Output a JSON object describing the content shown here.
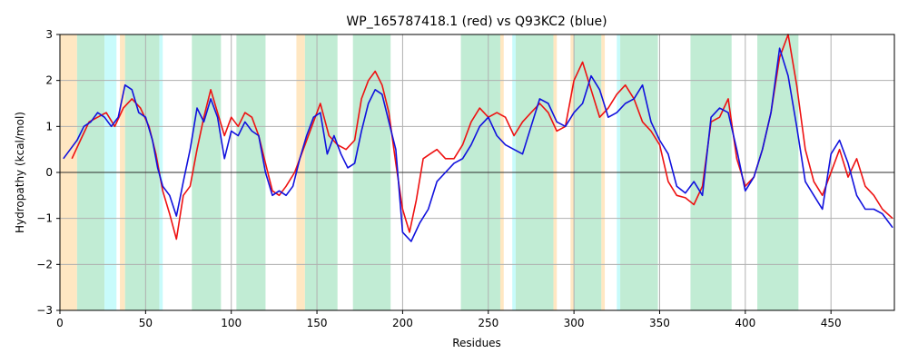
{
  "chart_data": {
    "type": "line",
    "title": "WP_165787418.1 (red) vs Q93KC2 (blue)",
    "xlabel": "Residues",
    "ylabel": "Hydropathy (kcal/mol)",
    "xlim": [
      0,
      487
    ],
    "ylim": [
      -3,
      3
    ],
    "xticks": [
      0,
      50,
      100,
      150,
      200,
      250,
      300,
      350,
      400,
      450
    ],
    "yticks": [
      -3,
      -2,
      -1,
      0,
      1,
      2,
      3
    ],
    "grid": true,
    "zero_line": true,
    "colors": {
      "series_red": "#ee1111",
      "series_blue": "#1111dd",
      "band_orange": "#ffe7c2",
      "band_cyan": "#c8fbfb",
      "band_green": "#c1ecd4",
      "grid": "#b0b0b0"
    },
    "bands": [
      {
        "start": 0,
        "end": 10,
        "kind": "orange"
      },
      {
        "start": 10,
        "end": 26,
        "kind": "green"
      },
      {
        "start": 26,
        "end": 33,
        "kind": "cyan"
      },
      {
        "start": 35,
        "end": 38,
        "kind": "orange"
      },
      {
        "start": 38,
        "end": 58,
        "kind": "green"
      },
      {
        "start": 58,
        "end": 60,
        "kind": "cyan"
      },
      {
        "start": 77,
        "end": 94,
        "kind": "green"
      },
      {
        "start": 103,
        "end": 120,
        "kind": "green"
      },
      {
        "start": 138,
        "end": 143,
        "kind": "orange"
      },
      {
        "start": 143,
        "end": 162,
        "kind": "green"
      },
      {
        "start": 171,
        "end": 193,
        "kind": "green"
      },
      {
        "start": 234,
        "end": 257,
        "kind": "green"
      },
      {
        "start": 257,
        "end": 259,
        "kind": "orange"
      },
      {
        "start": 264,
        "end": 266,
        "kind": "cyan"
      },
      {
        "start": 266,
        "end": 288,
        "kind": "green"
      },
      {
        "start": 288,
        "end": 290,
        "kind": "orange"
      },
      {
        "start": 298,
        "end": 300,
        "kind": "orange"
      },
      {
        "start": 300,
        "end": 316,
        "kind": "green"
      },
      {
        "start": 316,
        "end": 318,
        "kind": "orange"
      },
      {
        "start": 325,
        "end": 327,
        "kind": "cyan"
      },
      {
        "start": 327,
        "end": 349,
        "kind": "green"
      },
      {
        "start": 368,
        "end": 392,
        "kind": "green"
      },
      {
        "start": 407,
        "end": 431,
        "kind": "green"
      }
    ],
    "series": [
      {
        "color": "red",
        "x": [
          7,
          12,
          17,
          22,
          27,
          32,
          37,
          42,
          47,
          52,
          56,
          60,
          64,
          68,
          72,
          76,
          80,
          84,
          88,
          92,
          96,
          100,
          104,
          108,
          112,
          116,
          120,
          124,
          128,
          132,
          137,
          142,
          147,
          152,
          157,
          162,
          167,
          172,
          176,
          180,
          184,
          188,
          192,
          196,
          200,
          204,
          208,
          212,
          216,
          220,
          225,
          230,
          235,
          240,
          245,
          250,
          255,
          260,
          265,
          270,
          275,
          280,
          285,
          290,
          295,
          300,
          305,
          310,
          315,
          320,
          325,
          330,
          335,
          340,
          345,
          350,
          355,
          360,
          365,
          370,
          375,
          380,
          385,
          390,
          395,
          400,
          405,
          410,
          415,
          420,
          425,
          430,
          435,
          440,
          445,
          450,
          455,
          460,
          465,
          470,
          475,
          480,
          486
        ],
        "y": [
          0.3,
          0.7,
          1.1,
          1.2,
          1.3,
          1.0,
          1.4,
          1.6,
          1.4,
          1.0,
          0.4,
          -0.4,
          -0.9,
          -1.45,
          -0.5,
          -0.3,
          0.5,
          1.2,
          1.8,
          1.3,
          0.8,
          1.2,
          1.0,
          1.3,
          1.2,
          0.8,
          0.2,
          -0.4,
          -0.5,
          -0.3,
          0.0,
          0.5,
          1.0,
          1.5,
          0.8,
          0.6,
          0.5,
          0.7,
          1.6,
          2.0,
          2.2,
          1.9,
          1.3,
          0.2,
          -0.8,
          -1.3,
          -0.6,
          0.3,
          0.4,
          0.5,
          0.3,
          0.3,
          0.6,
          1.1,
          1.4,
          1.2,
          1.3,
          1.2,
          0.8,
          1.1,
          1.3,
          1.5,
          1.3,
          0.9,
          1.0,
          2.0,
          2.4,
          1.8,
          1.2,
          1.4,
          1.7,
          1.9,
          1.6,
          1.1,
          0.9,
          0.6,
          -0.2,
          -0.5,
          -0.55,
          -0.7,
          -0.3,
          1.1,
          1.2,
          1.6,
          0.3,
          -0.3,
          -0.1,
          0.5,
          1.3,
          2.5,
          3.0,
          1.9,
          0.5,
          -0.2,
          -0.5,
          0.0,
          0.5,
          -0.1,
          0.3,
          -0.3,
          -0.5,
          -0.8,
          -1.0
        ]
      },
      {
        "color": "blue",
        "x": [
          2,
          6,
          10,
          14,
          18,
          22,
          26,
          30,
          34,
          38,
          42,
          46,
          50,
          54,
          57,
          60,
          64,
          68,
          72,
          76,
          80,
          84,
          88,
          92,
          96,
          100,
          104,
          108,
          112,
          116,
          120,
          124,
          128,
          132,
          136,
          140,
          144,
          148,
          152,
          156,
          160,
          164,
          168,
          172,
          176,
          180,
          184,
          188,
          192,
          196,
          200,
          205,
          210,
          215,
          220,
          225,
          230,
          235,
          240,
          245,
          250,
          255,
          260,
          265,
          270,
          275,
          280,
          285,
          290,
          295,
          300,
          305,
          310,
          315,
          320,
          325,
          330,
          335,
          340,
          345,
          350,
          355,
          360,
          365,
          370,
          375,
          380,
          385,
          390,
          395,
          400,
          405,
          410,
          415,
          420,
          425,
          430,
          435,
          440,
          445,
          450,
          455,
          460,
          465,
          470,
          475,
          480,
          486
        ],
        "y": [
          0.3,
          0.5,
          0.7,
          1.0,
          1.1,
          1.3,
          1.2,
          1.0,
          1.2,
          1.9,
          1.8,
          1.3,
          1.2,
          0.7,
          0.1,
          -0.3,
          -0.5,
          -0.95,
          -0.2,
          0.5,
          1.4,
          1.1,
          1.6,
          1.2,
          0.3,
          0.9,
          0.8,
          1.1,
          0.9,
          0.8,
          0.0,
          -0.5,
          -0.4,
          -0.5,
          -0.3,
          0.3,
          0.8,
          1.2,
          1.3,
          0.4,
          0.8,
          0.4,
          0.1,
          0.2,
          0.9,
          1.5,
          1.8,
          1.7,
          1.1,
          0.5,
          -1.3,
          -1.5,
          -1.1,
          -0.8,
          -0.2,
          0.0,
          0.2,
          0.3,
          0.6,
          1.0,
          1.2,
          0.8,
          0.6,
          0.5,
          0.4,
          1.0,
          1.6,
          1.5,
          1.1,
          1.0,
          1.3,
          1.5,
          2.1,
          1.8,
          1.2,
          1.3,
          1.5,
          1.6,
          1.9,
          1.1,
          0.7,
          0.4,
          -0.3,
          -0.45,
          -0.2,
          -0.5,
          1.2,
          1.4,
          1.3,
          0.5,
          -0.4,
          -0.1,
          0.5,
          1.3,
          2.7,
          2.1,
          1.0,
          -0.2,
          -0.5,
          -0.8,
          0.4,
          0.7,
          0.2,
          -0.5,
          -0.8,
          -0.8,
          -0.9,
          -1.2
        ]
      }
    ]
  }
}
